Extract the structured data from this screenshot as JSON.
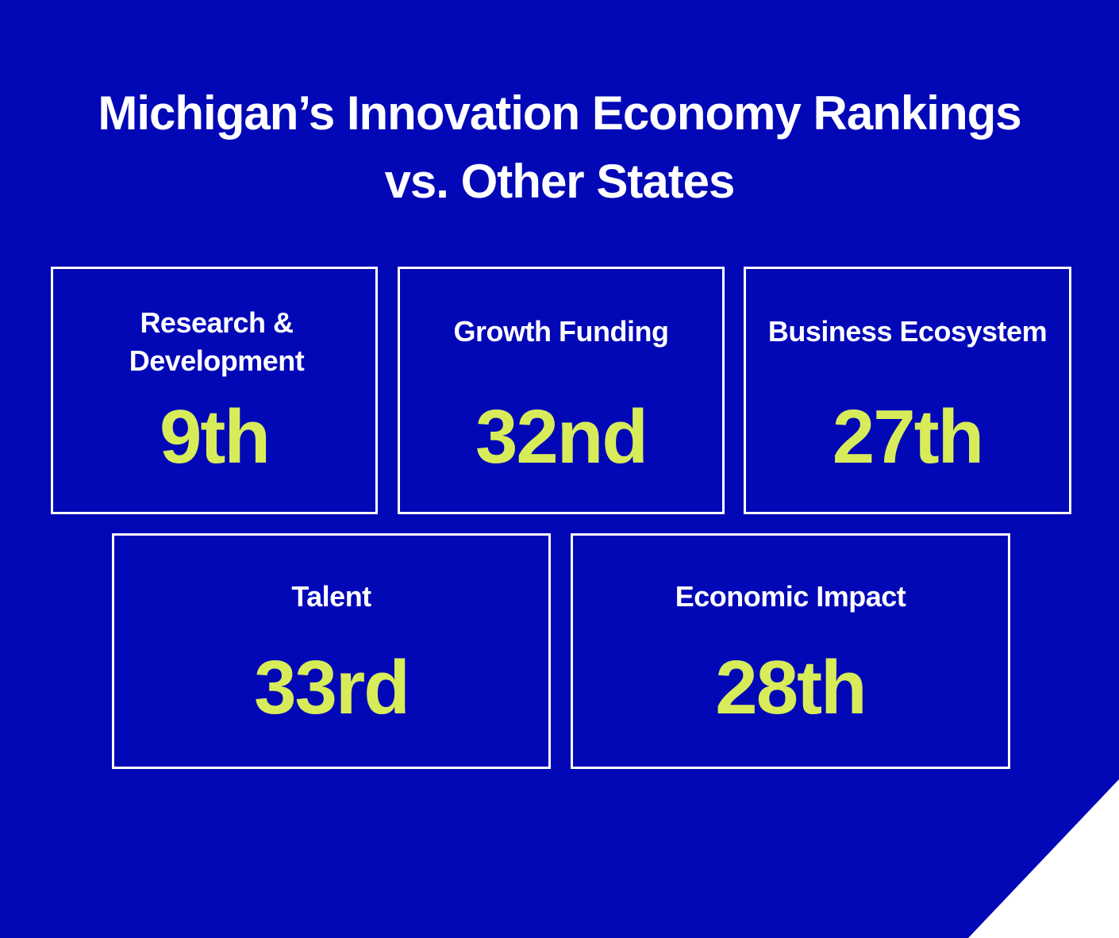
{
  "title": {
    "line1": "Michigan’s Innovation Economy Rankings",
    "line2": "vs. Other States"
  },
  "cards": [
    {
      "label": "Research & Development",
      "value": "9th"
    },
    {
      "label": "Growth Funding",
      "value": "32nd"
    },
    {
      "label": "Business Ecosystem",
      "value": "27th"
    },
    {
      "label": "Talent",
      "value": "33rd"
    },
    {
      "label": "Economic Impact",
      "value": "28th"
    }
  ],
  "colors": {
    "background": "#0208B6",
    "accent": "#D8EC5A",
    "text": "#FFFFFF",
    "border": "#FFFFFF"
  }
}
